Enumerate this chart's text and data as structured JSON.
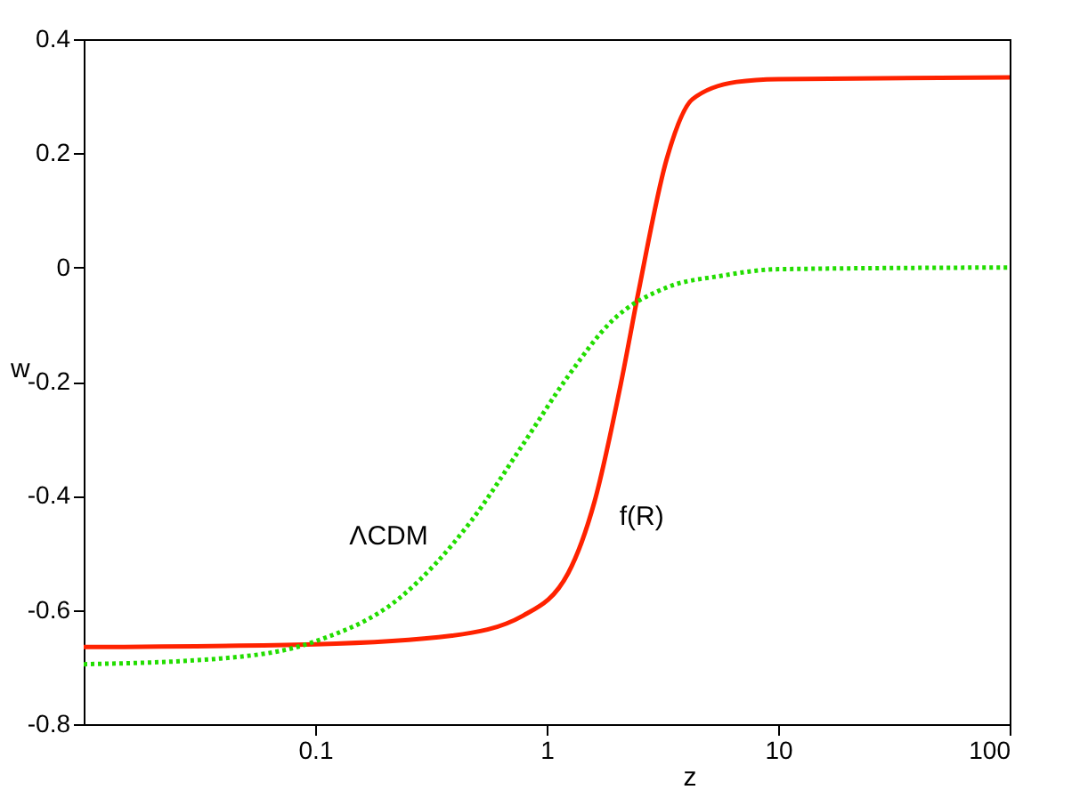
{
  "chart_data": {
    "type": "line",
    "xlabel": "z",
    "ylabel": "w",
    "log": "x",
    "grid": false,
    "xlim": [
      0.01,
      100
    ],
    "xticks": [
      0.1,
      1,
      10,
      100
    ],
    "ylim": [
      -0.8,
      0.4
    ],
    "yticks": [
      -0.8,
      -0.6,
      -0.4,
      -0.2,
      0,
      0.2,
      0.4
    ],
    "series": [
      {
        "name": "f(R)",
        "color": "#ff2200",
        "line_style": "solid",
        "x": [
          0.01,
          0.1,
          0.39,
          0.79,
          1.24,
          1.61,
          2.1,
          2.5,
          3.3,
          4.27,
          6.6,
          10,
          100
        ],
        "values": [
          -0.665,
          -0.66,
          -0.645,
          -0.61,
          -0.535,
          -0.41,
          -0.2,
          -0.04,
          0.19,
          0.295,
          0.325,
          0.33,
          0.333
        ]
      },
      {
        "name": "ΛCDM",
        "color": "#22dd00",
        "line_style": "dotted",
        "x": [
          0.01,
          0.039,
          0.1,
          0.23,
          0.47,
          0.79,
          1.24,
          1.9,
          3.3,
          5.6,
          10,
          100
        ],
        "values": [
          -0.695,
          -0.685,
          -0.655,
          -0.58,
          -0.445,
          -0.31,
          -0.19,
          -0.095,
          -0.035,
          -0.015,
          -0.003,
          0
        ]
      }
    ]
  }
}
